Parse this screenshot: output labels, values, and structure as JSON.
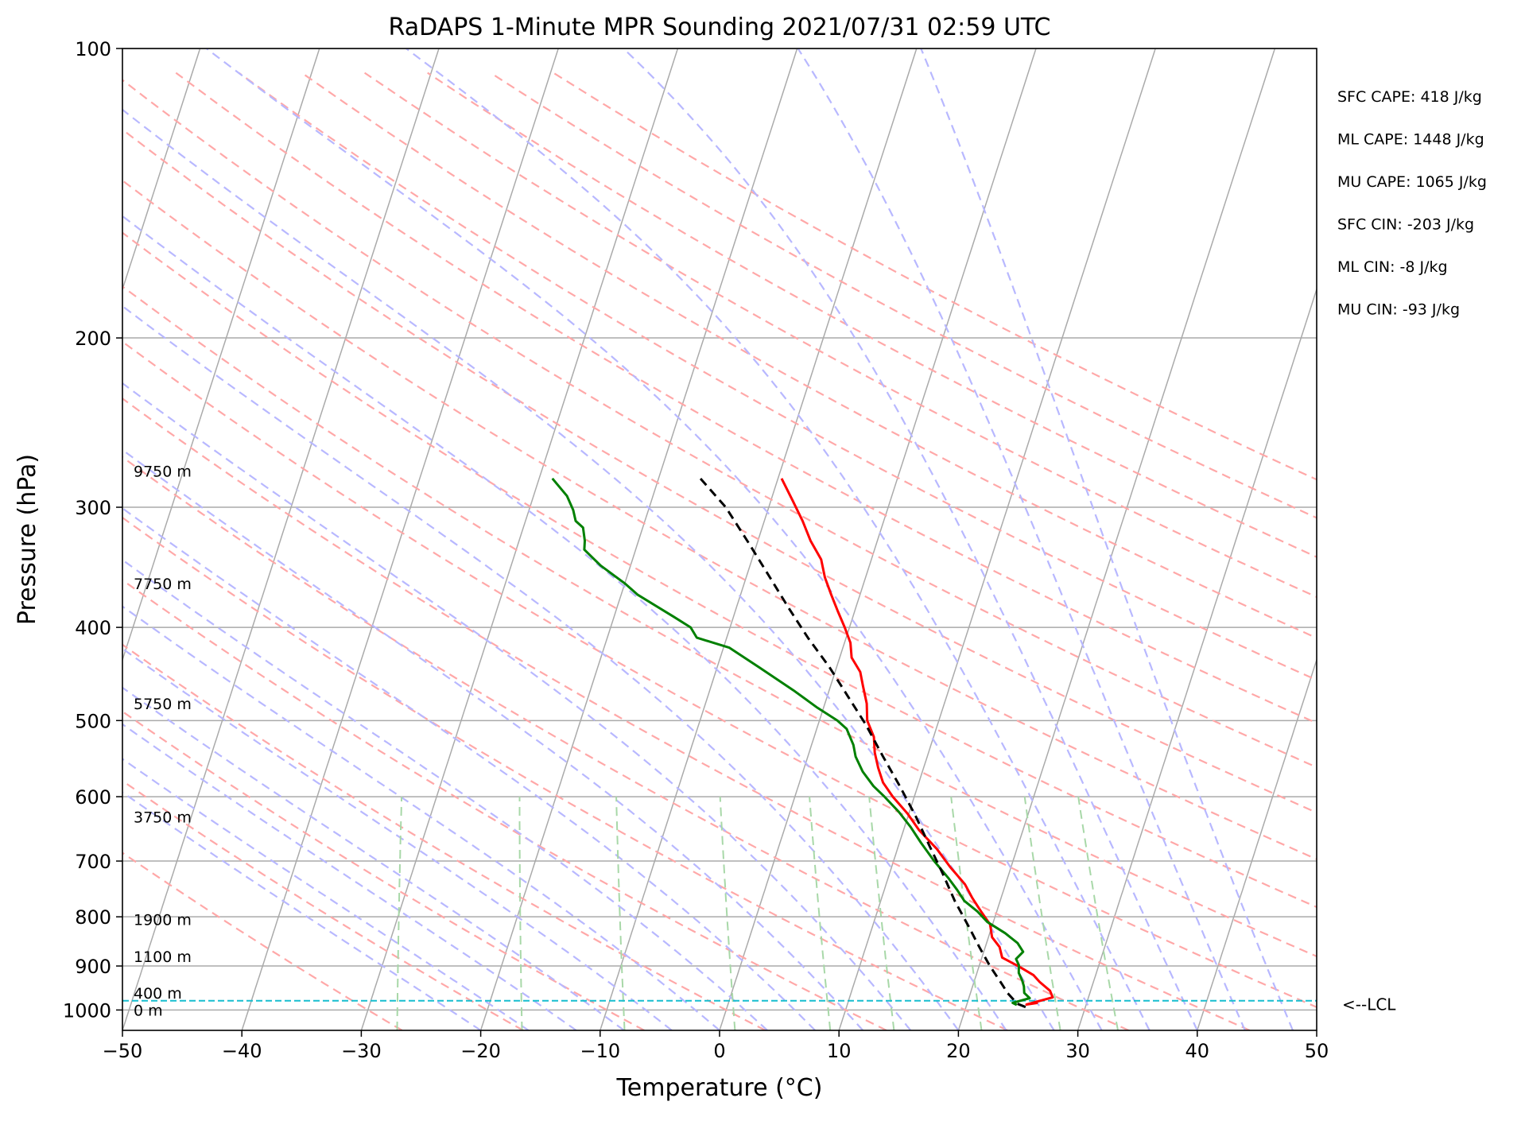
{
  "chart_data": {
    "type": "line",
    "subtype": "skew-t log-p",
    "title": "RaDAPS 1-Minute MPR Sounding 2021/07/31 02:59 UTC",
    "xlabel": "Temperature (°C)",
    "ylabel": "Pressure (hPa)",
    "xlim": [
      -50,
      50
    ],
    "ylim": [
      1050,
      100
    ],
    "y_scale": "log",
    "x_ticks": [
      "−50",
      "−40",
      "−30",
      "−20",
      "−10",
      "0",
      "10",
      "20",
      "30",
      "40",
      "50"
    ],
    "x_tick_values": [
      -50,
      -40,
      -30,
      -20,
      -10,
      0,
      10,
      20,
      30,
      40,
      50
    ],
    "y_ticks": [
      "100",
      "200",
      "300",
      "400",
      "500",
      "600",
      "700",
      "800",
      "900",
      "1000"
    ],
    "y_tick_values": [
      100,
      200,
      300,
      400,
      500,
      600,
      700,
      800,
      900,
      1000
    ],
    "grid": true,
    "height_labels": [
      {
        "text": "9750 m",
        "pressure": 275
      },
      {
        "text": "7750 m",
        "pressure": 360
      },
      {
        "text": "5750 m",
        "pressure": 480
      },
      {
        "text": "3750 m",
        "pressure": 630
      },
      {
        "text": "1900 m",
        "pressure": 805
      },
      {
        "text": "1100 m",
        "pressure": 880
      },
      {
        "text": "400 m",
        "pressure": 960
      },
      {
        "text": "0 m",
        "pressure": 1000
      }
    ],
    "stats": [
      "SFC CAPE: 418 J/kg",
      "ML CAPE: 1448 J/kg",
      "MU CAPE: 1065 J/kg",
      "SFC CIN: -203 J/kg",
      "ML CIN: -8 J/kg",
      "MU CIN: -93 J/kg"
    ],
    "lcl": {
      "label": "<--LCL",
      "pressure": 978,
      "color": "#17becf"
    },
    "series": [
      {
        "role": "temperature",
        "color": "#ff0000",
        "points": [
          [
            25.9,
            983
          ],
          [
            25.0,
            987
          ],
          [
            27.0,
            970
          ],
          [
            26.6,
            955
          ],
          [
            25.5,
            935
          ],
          [
            24.8,
            920
          ],
          [
            23.5,
            903
          ],
          [
            21.7,
            882
          ],
          [
            21.2,
            860
          ],
          [
            20.3,
            840
          ],
          [
            19.8,
            815
          ],
          [
            18.7,
            790
          ],
          [
            17.6,
            765
          ],
          [
            16.6,
            740
          ],
          [
            14.9,
            710
          ],
          [
            13.3,
            680
          ],
          [
            11.3,
            650
          ],
          [
            9.9,
            625
          ],
          [
            8.2,
            600
          ],
          [
            7.0,
            580
          ],
          [
            6.2,
            560
          ],
          [
            5.5,
            540
          ],
          [
            5.0,
            520
          ],
          [
            4.0,
            500
          ],
          [
            3.5,
            480
          ],
          [
            2.7,
            460
          ],
          [
            2.1,
            445
          ],
          [
            1.0,
            430
          ],
          [
            0.5,
            415
          ],
          [
            -0.4,
            400
          ],
          [
            -1.4,
            385
          ],
          [
            -2.4,
            370
          ],
          [
            -3.4,
            355
          ],
          [
            -4.2,
            340
          ],
          [
            -5.6,
            325
          ],
          [
            -6.8,
            310
          ],
          [
            -8.2,
            295
          ],
          [
            -9.7,
            280
          ]
        ]
      },
      {
        "role": "dewpoint",
        "color": "#008000",
        "points": [
          [
            24.2,
            988
          ],
          [
            23.8,
            983
          ],
          [
            25.1,
            972
          ],
          [
            24.5,
            960
          ],
          [
            24.3,
            945
          ],
          [
            24.0,
            932
          ],
          [
            23.5,
            915
          ],
          [
            23.3,
            898
          ],
          [
            22.9,
            885
          ],
          [
            23.3,
            870
          ],
          [
            22.6,
            852
          ],
          [
            21.3,
            832
          ],
          [
            19.5,
            810
          ],
          [
            18.4,
            790
          ],
          [
            17.0,
            770
          ],
          [
            16.1,
            750
          ],
          [
            15.1,
            730
          ],
          [
            13.4,
            700
          ],
          [
            11.8,
            670
          ],
          [
            10.5,
            645
          ],
          [
            9.1,
            622
          ],
          [
            7.5,
            600
          ],
          [
            6.3,
            585
          ],
          [
            5.0,
            565
          ],
          [
            4.0,
            545
          ],
          [
            3.5,
            530
          ],
          [
            2.5,
            510
          ],
          [
            1.5,
            500
          ],
          [
            -0.5,
            485
          ],
          [
            -3.0,
            465
          ],
          [
            -6.5,
            440
          ],
          [
            -9.5,
            420
          ],
          [
            -12.5,
            410
          ],
          [
            -13.3,
            400
          ],
          [
            -15.0,
            390
          ],
          [
            -18.6,
            370
          ],
          [
            -20.0,
            360
          ],
          [
            -22.5,
            345
          ],
          [
            -24.3,
            332
          ],
          [
            -24.5,
            325
          ],
          [
            -25.0,
            315
          ],
          [
            -25.8,
            310
          ],
          [
            -26.3,
            302
          ],
          [
            -27.2,
            292
          ],
          [
            -28.9,
            280
          ]
        ]
      },
      {
        "role": "parcel",
        "color": "#000000",
        "dashed": true,
        "points": [
          [
            25.0,
            993
          ],
          [
            24.2,
            985
          ],
          [
            23.1,
            960
          ],
          [
            22.4,
            940
          ],
          [
            20.9,
            900
          ],
          [
            19.5,
            860
          ],
          [
            18.1,
            820
          ],
          [
            16.2,
            770
          ],
          [
            14.4,
            720
          ],
          [
            12.6,
            675
          ],
          [
            10.7,
            630
          ],
          [
            8.5,
            585
          ],
          [
            6.3,
            545
          ],
          [
            4.0,
            505
          ],
          [
            1.6,
            470
          ],
          [
            -0.6,
            440
          ],
          [
            -3.2,
            410
          ],
          [
            -5.6,
            382
          ],
          [
            -8.0,
            355
          ],
          [
            -10.7,
            327
          ],
          [
            -13.6,
            300
          ],
          [
            -16.5,
            280
          ]
        ]
      }
    ],
    "background_lines": {
      "isotherm_color": "#aaaaaa",
      "dry_adiabat_color": "#ffa8a8",
      "moist_adiabat_color": "#b8b8ff",
      "mixing_ratio_color": "#a8d8a8"
    }
  }
}
